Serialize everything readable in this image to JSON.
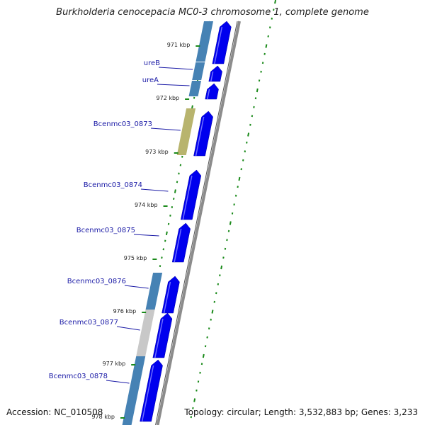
{
  "title": "Burkholderia cenocepacia MC0-3 chromosome 1, complete genome",
  "footer": {
    "accession": "Accession: NC_010508",
    "topology": "Topology: circular; Length: 3,532,883 bp; Genes: 3,233"
  },
  "ticks": [
    "971 kbp",
    "972 kbp",
    "973 kbp",
    "974 kbp",
    "975 kbp",
    "976 kbp",
    "977 kbp",
    "978 kbp"
  ],
  "genes": [
    "ureB",
    "ureA",
    "Bcenmc03_0873",
    "Bcenmc03_0874",
    "Bcenmc03_0875",
    "Bcenmc03_0876",
    "Bcenmc03_0877",
    "Bcenmc03_0878"
  ],
  "colors": {
    "cds": "#0000ee",
    "cog_blue": "#4682b4",
    "cog_olive": "#b8b46e",
    "cog_grey": "#c8c8c8",
    "backbone": "#8c8c8c",
    "skew": "#1a8a1a",
    "label": "#1a1aa6"
  }
}
